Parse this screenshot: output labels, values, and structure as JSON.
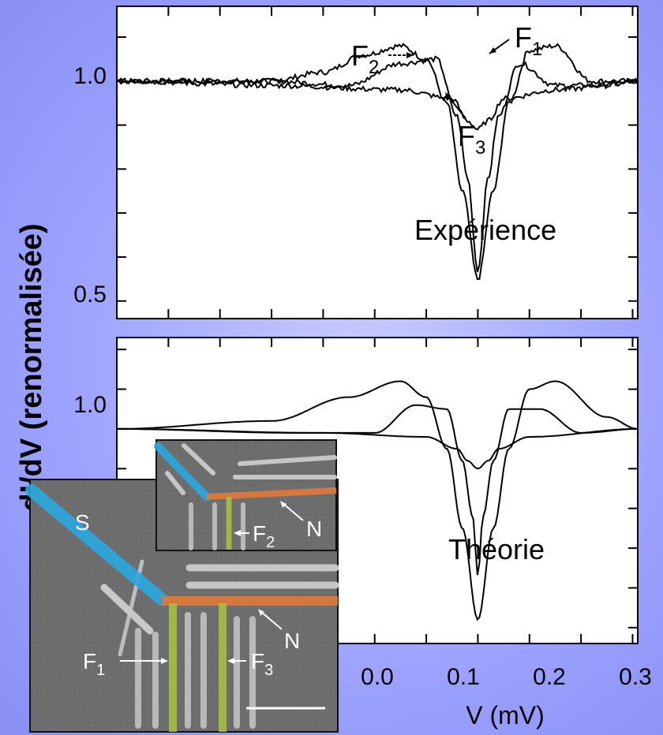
{
  "chart_data": [
    {
      "type": "line",
      "panel_label": "Expérience",
      "ylabel": "dI/dV (renormalisée)",
      "xlim": [
        -0.7,
        0.31
      ],
      "ylim": [
        0.46,
        1.17
      ],
      "y_ticks": [
        {
          "value": 1.0,
          "label": "1.0"
        },
        {
          "value": 0.5,
          "label": "0.5"
        }
      ],
      "noisy": true,
      "series": [
        {
          "name": "F1",
          "label": "F",
          "sub": "1",
          "x": [
            -0.7,
            -0.4,
            -0.3,
            -0.22,
            -0.15,
            -0.1,
            -0.06,
            -0.03,
            0.0,
            0.03,
            0.06,
            0.1,
            0.15,
            0.22,
            0.31
          ],
          "y": [
            1.0,
            1.0,
            1.02,
            1.06,
            1.08,
            1.05,
            0.95,
            0.75,
            0.55,
            0.75,
            0.95,
            1.07,
            1.08,
            1.0,
            1.0
          ]
        },
        {
          "name": "F2",
          "label": "F",
          "sub": "2",
          "x": [
            -0.7,
            -0.4,
            -0.25,
            -0.15,
            -0.08,
            -0.04,
            -0.02,
            0.0,
            0.02,
            0.04,
            0.08,
            0.15,
            0.25,
            0.31
          ],
          "y": [
            1.0,
            1.0,
            0.99,
            1.04,
            1.05,
            0.92,
            0.78,
            0.57,
            0.78,
            0.92,
            1.04,
            0.99,
            0.99,
            1.0
          ]
        },
        {
          "name": "F3",
          "label": "F",
          "sub": "3",
          "x": [
            -0.7,
            -0.4,
            -0.15,
            -0.05,
            -0.02,
            0.0,
            0.02,
            0.05,
            0.15,
            0.31
          ],
          "y": [
            1.0,
            0.99,
            0.98,
            0.96,
            0.91,
            0.89,
            0.91,
            0.96,
            0.98,
            1.0
          ]
        }
      ],
      "annotations": [
        {
          "series": "F1",
          "text": "F",
          "sub": "1"
        },
        {
          "series": "F2",
          "text": "F",
          "sub": "2"
        },
        {
          "series": "F3",
          "text": "F",
          "sub": "3"
        }
      ]
    },
    {
      "type": "line",
      "panel_label": "Théorie",
      "xlabel": "V (mV)",
      "xlim": [
        -0.7,
        0.31
      ],
      "ylim": [
        0.46,
        1.23
      ],
      "y_ticks": [
        {
          "value": 1.0,
          "label": "1.0"
        }
      ],
      "x_ticks": [
        {
          "value": 0.0,
          "label": "0.0"
        },
        {
          "value": 0.1,
          "label": "0.1"
        },
        {
          "value": 0.2,
          "label": "0.2"
        },
        {
          "value": 0.3,
          "label": "0.3"
        }
      ],
      "noisy": false,
      "series": [
        {
          "name": "F1",
          "x": [
            -0.7,
            -0.4,
            -0.25,
            -0.15,
            -0.1,
            -0.06,
            -0.03,
            0.0,
            0.03,
            0.06,
            0.1,
            0.15,
            0.25,
            0.31
          ],
          "y": [
            1.0,
            1.02,
            1.08,
            1.12,
            1.08,
            0.95,
            0.75,
            0.52,
            0.75,
            0.95,
            1.1,
            1.12,
            1.03,
            1.0
          ]
        },
        {
          "name": "F2",
          "x": [
            -0.7,
            -0.35,
            -0.2,
            -0.12,
            -0.06,
            -0.03,
            -0.01,
            0.0,
            0.01,
            0.03,
            0.06,
            0.12,
            0.2,
            0.31
          ],
          "y": [
            1.0,
            0.99,
            0.99,
            1.06,
            1.05,
            0.92,
            0.78,
            0.63,
            0.78,
            0.92,
            1.05,
            1.05,
            0.99,
            1.0
          ]
        },
        {
          "name": "F3",
          "x": [
            -0.7,
            -0.3,
            -0.1,
            -0.04,
            -0.02,
            0.0,
            0.02,
            0.04,
            0.1,
            0.31
          ],
          "y": [
            1.0,
            0.99,
            0.98,
            0.95,
            0.92,
            0.9,
            0.92,
            0.95,
            0.98,
            1.0
          ]
        }
      ]
    }
  ],
  "inset_labels": {
    "s": "S",
    "n_main": "N",
    "f1": "F",
    "f1_sub": "1",
    "f3": "F",
    "f3_sub": "3",
    "n_small": "N",
    "f2": "F",
    "f2_sub": "2"
  },
  "colors": {
    "s_lead": "#2aa9e0",
    "n_wire": "#e07a3c",
    "f_wire": "#a8c43c"
  }
}
